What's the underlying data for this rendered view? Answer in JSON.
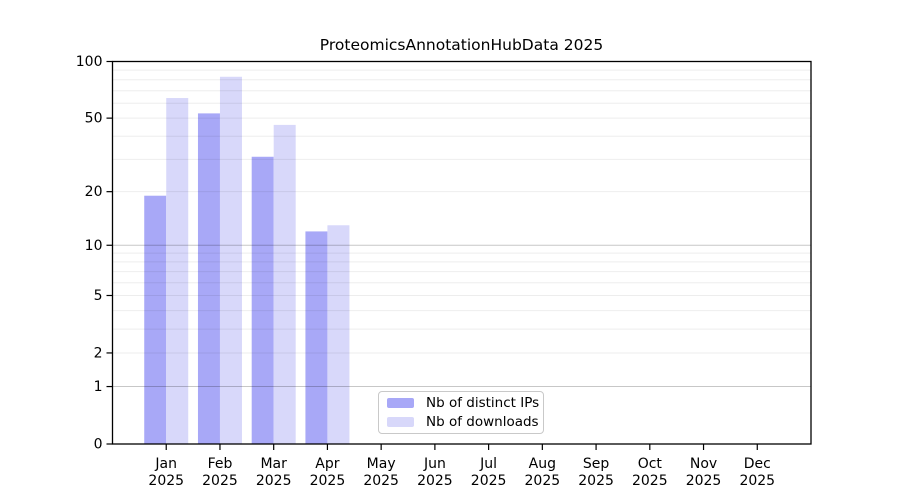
{
  "chart_data": {
    "type": "bar",
    "title": "ProteomicsAnnotationHubData 2025",
    "categories": [
      "Jan",
      "Feb",
      "Mar",
      "Apr",
      "May",
      "Jun",
      "Jul",
      "Aug",
      "Sep",
      "Oct",
      "Nov",
      "Dec"
    ],
    "x_tick_year": "2025",
    "series": [
      {
        "name": "Nb of distinct IPs",
        "color": "#a8a8f7",
        "values": [
          19,
          53,
          31,
          12,
          null,
          null,
          null,
          null,
          null,
          null,
          null,
          null
        ]
      },
      {
        "name": "Nb of downloads",
        "color": "#d8d8fa",
        "values": [
          64,
          83,
          46,
          13,
          null,
          null,
          null,
          null,
          null,
          null,
          null,
          null
        ]
      }
    ],
    "yscale": "log1p",
    "ylim": [
      0,
      100
    ],
    "y_ticks": [
      0,
      1,
      2,
      5,
      10,
      20,
      50,
      100
    ],
    "minor_gridlines": [
      2,
      3,
      4,
      5,
      6,
      7,
      8,
      9,
      20,
      30,
      40,
      50,
      60,
      70,
      80,
      90
    ],
    "major_gridlines": [
      1,
      10,
      100
    ],
    "grid": true,
    "legend_position": "bottom-center",
    "xlabel": "",
    "ylabel": ""
  },
  "colors": {
    "spine": "#000000",
    "minor_grid": "rgba(0,0,0,0.07)",
    "major_grid": "rgba(0,0,0,0.22)",
    "legend_border": "#c9c9c9"
  }
}
